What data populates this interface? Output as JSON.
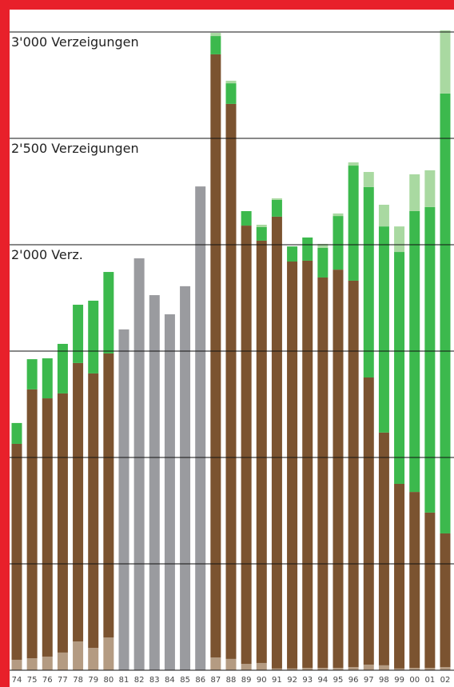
{
  "chart_data": {
    "type": "stacked_bar",
    "categories": [
      "74",
      "75",
      "76",
      "77",
      "78",
      "79",
      "80",
      "81",
      "82",
      "83",
      "84",
      "85",
      "86",
      "87",
      "88",
      "89",
      "90",
      "91",
      "92",
      "93",
      "94",
      "95",
      "96",
      "97",
      "98",
      "99",
      "00",
      "01",
      "02"
    ],
    "series": [
      {
        "color": "#b49b82",
        "values": [
          49,
          56,
          64,
          83,
          135,
          105,
          154,
          null,
          null,
          null,
          null,
          null,
          null,
          60,
          53,
          30,
          34,
          8,
          8,
          11,
          11,
          11,
          15,
          26,
          23,
          8,
          11,
          11,
          15
        ]
      },
      {
        "color": "#7b5330",
        "values": [
          1015,
          1264,
          1214,
          1218,
          1309,
          1290,
          1335,
          null,
          null,
          null,
          null,
          null,
          null,
          2835,
          2609,
          2060,
          1985,
          2124,
          1913,
          1914,
          1835,
          1872,
          1816,
          1350,
          1094,
          868,
          827,
          730,
          628
        ]
      },
      {
        "color": "#3cb94d",
        "values": [
          98,
          142,
          188,
          233,
          274,
          342,
          383,
          null,
          null,
          null,
          null,
          null,
          null,
          86,
          97,
          68,
          64,
          79,
          71,
          109,
          139,
          252,
          541,
          895,
          969,
          1090,
          1320,
          1436,
          2068
        ]
      },
      {
        "color": "#a9d9a1",
        "values": [
          null,
          null,
          null,
          null,
          null,
          null,
          null,
          null,
          null,
          null,
          null,
          null,
          null,
          15,
          12,
          null,
          11,
          7,
          null,
          null,
          19,
          12,
          15,
          71,
          102,
          120,
          173,
          173,
          297
        ]
      },
      {
        "color": "#9a9b9f",
        "values": [
          null,
          null,
          null,
          null,
          null,
          null,
          null,
          1602,
          1936,
          1763,
          1673,
          1805,
          2274,
          null,
          null,
          null,
          null,
          null,
          null,
          null,
          null,
          null,
          null,
          null,
          null,
          null,
          null,
          null,
          null
        ]
      }
    ],
    "ylim": [
      0,
      3000
    ],
    "yticks": [
      {
        "value": 0,
        "label": null
      },
      {
        "value": 500,
        "label": null
      },
      {
        "value": 1000,
        "label": null
      },
      {
        "value": 1500,
        "label": null
      },
      {
        "value": 2000,
        "label": "2'000 Verz."
      },
      {
        "value": 2500,
        "label": "2'500 Verzeigungen"
      },
      {
        "value": 3000,
        "label": "3'000 Verzeigungen"
      }
    ],
    "grid": true
  }
}
